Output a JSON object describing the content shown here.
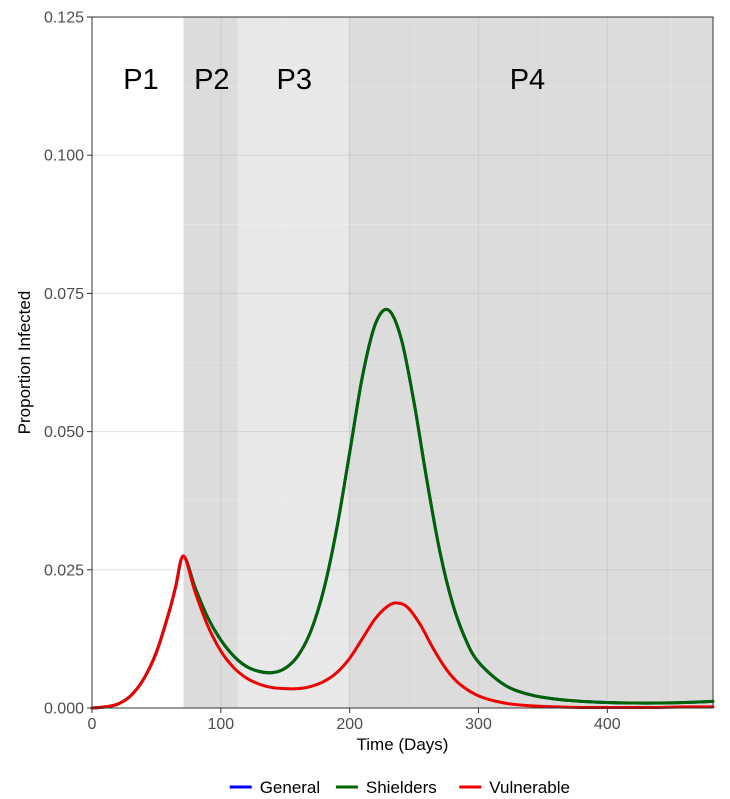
{
  "chart_data": {
    "type": "line",
    "title": "",
    "xlabel": "Time (Days)",
    "ylabel": "Proportion Infected",
    "xlim": [
      0,
      482
    ],
    "ylim": [
      0,
      0.125
    ],
    "xticks": [
      0,
      100,
      200,
      300,
      400
    ],
    "xtick_labels": [
      "0",
      "100",
      "200",
      "300",
      "400"
    ],
    "yticks": [
      0,
      0.025,
      0.05,
      0.075,
      0.1,
      0.125
    ],
    "ytick_labels": [
      "0.000",
      "0.025",
      "0.050",
      "0.075",
      "0.100",
      "0.125"
    ],
    "grid": true,
    "legend": "bottom",
    "phases": [
      {
        "label": "P1",
        "start": 0,
        "end": 71,
        "fill": "#ffffff",
        "label_x": 38
      },
      {
        "label": "P2",
        "start": 71,
        "end": 113,
        "fill": "#dcdcdc",
        "label_x": 93
      },
      {
        "label": "P3",
        "start": 113,
        "end": 199,
        "fill": "#e8e8e8",
        "label_x": 157
      },
      {
        "label": "P4",
        "start": 199,
        "end": 482,
        "fill": "#dcdcdc",
        "label_x": 338
      }
    ],
    "phase_label_y": 0.112,
    "series": [
      {
        "name": "General",
        "color": "#0000ff",
        "x": [
          0,
          10,
          20,
          30,
          40,
          50,
          60,
          65,
          71,
          80,
          90,
          100,
          110,
          120,
          130,
          140,
          150,
          160,
          170,
          180,
          190,
          200,
          210,
          220,
          230,
          240,
          250,
          260,
          270,
          280,
          290,
          300,
          320,
          340,
          360,
          380,
          400,
          420,
          440,
          460,
          482
        ],
        "y": [
          0,
          0.0002,
          0.0007,
          0.0022,
          0.0052,
          0.0101,
          0.0175,
          0.022,
          0.0275,
          0.0218,
          0.0163,
          0.0123,
          0.0094,
          0.0075,
          0.0066,
          0.0064,
          0.0072,
          0.0095,
          0.014,
          0.0215,
          0.0325,
          0.0462,
          0.0601,
          0.0695,
          0.072,
          0.0668,
          0.0552,
          0.0411,
          0.0283,
          0.0188,
          0.0124,
          0.0083,
          0.0042,
          0.0024,
          0.0016,
          0.0012,
          0.001,
          0.0009,
          0.0009,
          0.001,
          0.0012
        ]
      },
      {
        "name": "Shielders",
        "color": "#006400",
        "x": [
          0,
          10,
          20,
          30,
          40,
          50,
          60,
          65,
          71,
          80,
          90,
          100,
          110,
          120,
          130,
          140,
          150,
          160,
          170,
          180,
          190,
          200,
          210,
          220,
          230,
          240,
          250,
          260,
          270,
          280,
          290,
          300,
          320,
          340,
          360,
          380,
          400,
          420,
          440,
          460,
          482
        ],
        "y": [
          0,
          0.0002,
          0.0007,
          0.0022,
          0.0052,
          0.0101,
          0.0175,
          0.022,
          0.0275,
          0.0218,
          0.0163,
          0.0123,
          0.0094,
          0.0075,
          0.0066,
          0.0064,
          0.0072,
          0.0095,
          0.014,
          0.0215,
          0.0325,
          0.0462,
          0.0601,
          0.0695,
          0.072,
          0.0668,
          0.0552,
          0.0411,
          0.0283,
          0.0188,
          0.0124,
          0.0083,
          0.0042,
          0.0024,
          0.0016,
          0.0012,
          0.001,
          0.0009,
          0.0009,
          0.001,
          0.0012
        ]
      },
      {
        "name": "Vulnerable",
        "color": "#ee0000",
        "x": [
          0,
          10,
          20,
          30,
          40,
          50,
          60,
          65,
          71,
          80,
          90,
          100,
          110,
          120,
          130,
          140,
          150,
          160,
          170,
          180,
          190,
          200,
          210,
          220,
          230,
          237,
          245,
          255,
          265,
          275,
          285,
          300,
          320,
          340,
          360,
          380,
          400,
          420,
          440,
          460,
          482
        ],
        "y": [
          0,
          0.0002,
          0.0007,
          0.0022,
          0.0052,
          0.0101,
          0.0175,
          0.022,
          0.0275,
          0.021,
          0.0148,
          0.0103,
          0.0073,
          0.0054,
          0.0043,
          0.0037,
          0.0035,
          0.0035,
          0.0039,
          0.0048,
          0.0064,
          0.009,
          0.0126,
          0.0162,
          0.0185,
          0.019,
          0.0182,
          0.015,
          0.0107,
          0.007,
          0.0044,
          0.0022,
          0.0009,
          0.0004,
          0.0002,
          0.0001,
          0.0001,
          0.0001,
          0.0001,
          0.0002,
          0.0002
        ]
      }
    ]
  }
}
